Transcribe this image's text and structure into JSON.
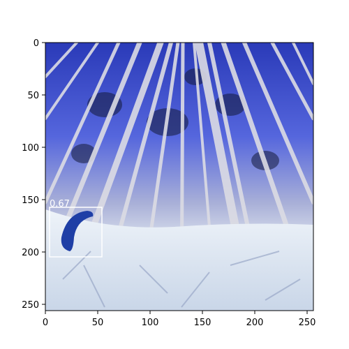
{
  "axes": {
    "x_ticks": [
      "0",
      "50",
      "100",
      "150",
      "200",
      "250"
    ],
    "y_ticks": [
      "0",
      "50",
      "100",
      "150",
      "200",
      "250"
    ]
  },
  "detection": {
    "score_label": "0.67",
    "box_color": "#ffffff",
    "object_color": "#1f3fa6"
  },
  "image": {
    "description_colors": {
      "sky": "#3b4fd6",
      "trunks": "#d8d8e0",
      "ground": "#dfe8f2"
    }
  }
}
